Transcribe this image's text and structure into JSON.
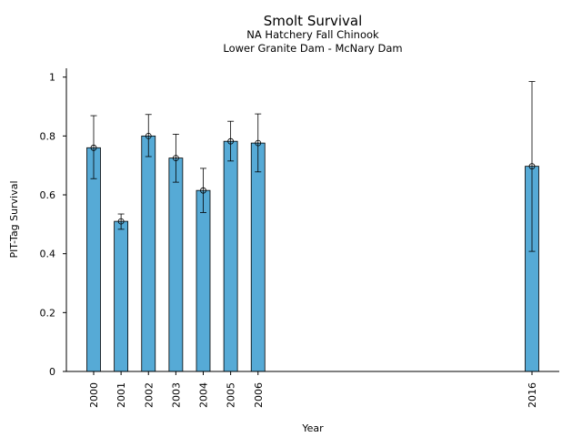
{
  "chart_data": {
    "type": "bar",
    "title": "Smolt Survival",
    "subtitle_lines": [
      "NA Hatchery Fall Chinook",
      "Lower Granite Dam - McNary Dam"
    ],
    "xlabel": "Year",
    "ylabel": "PIT-Tag Survival",
    "categories": [
      "2000",
      "2001",
      "2002",
      "2003",
      "2004",
      "2005",
      "2006",
      "2016"
    ],
    "values": [
      0.76,
      0.51,
      0.8,
      0.725,
      0.615,
      0.782,
      0.776,
      0.697
    ],
    "error_low": [
      0.655,
      0.483,
      0.73,
      0.643,
      0.54,
      0.715,
      0.678,
      0.408
    ],
    "error_high": [
      0.869,
      0.535,
      0.873,
      0.806,
      0.69,
      0.85,
      0.875,
      0.985
    ],
    "ylim": [
      0,
      1.03
    ],
    "yticks": [
      0,
      0.2,
      0.4,
      0.6,
      0.8,
      1
    ],
    "ytick_labels": [
      "0",
      "0.2",
      "0.4",
      "0.6",
      "0.8",
      "1"
    ],
    "bar_color": "#56aad6",
    "grid": false,
    "legend": "none"
  }
}
